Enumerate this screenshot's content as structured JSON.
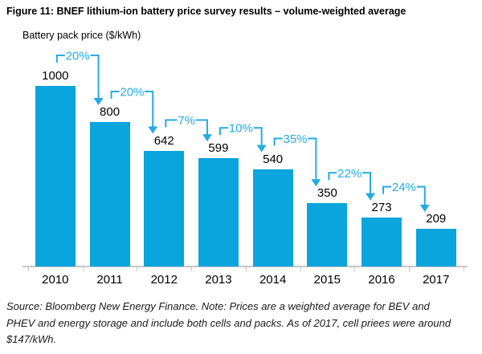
{
  "chart_data": {
    "type": "bar",
    "title": "Figure 11: BNEF lithium-ion battery price survey results – volume-weighted average",
    "ylabel": "Battery pack price ($/kWh)",
    "xlabel": "",
    "categories": [
      "2010",
      "2011",
      "2012",
      "2013",
      "2014",
      "2015",
      "2016",
      "2017"
    ],
    "values": [
      1000,
      800,
      642,
      599,
      540,
      350,
      273,
      209
    ],
    "pct_declines": [
      {
        "from_year": "2010",
        "to_year": "2011",
        "label": "20%"
      },
      {
        "from_year": "2011",
        "to_year": "2012",
        "label": "20%"
      },
      {
        "from_year": "2012",
        "to_year": "2013",
        "label": "7%"
      },
      {
        "from_year": "2013",
        "to_year": "2014",
        "label": "10%"
      },
      {
        "from_year": "2014",
        "to_year": "2015",
        "label": "35%"
      },
      {
        "from_year": "2015",
        "to_year": "2016",
        "label": "22%"
      },
      {
        "from_year": "2016",
        "to_year": "2017",
        "label": "24%"
      }
    ],
    "ylim": [
      0,
      1000
    ],
    "grid": false,
    "legend": false,
    "bar_color": "#0aa5dc",
    "annotation_color": "#25abe2",
    "axis_color": "#c6c6c6"
  },
  "source_note": {
    "lines": [
      "Source: Bloomberg New Energy Finance. Note: Prices are a weighted average for BEV and",
      "PHEV and energy storage and include both cells and packs. As of 2017, cell priees were around",
      "$147/kWh."
    ]
  }
}
